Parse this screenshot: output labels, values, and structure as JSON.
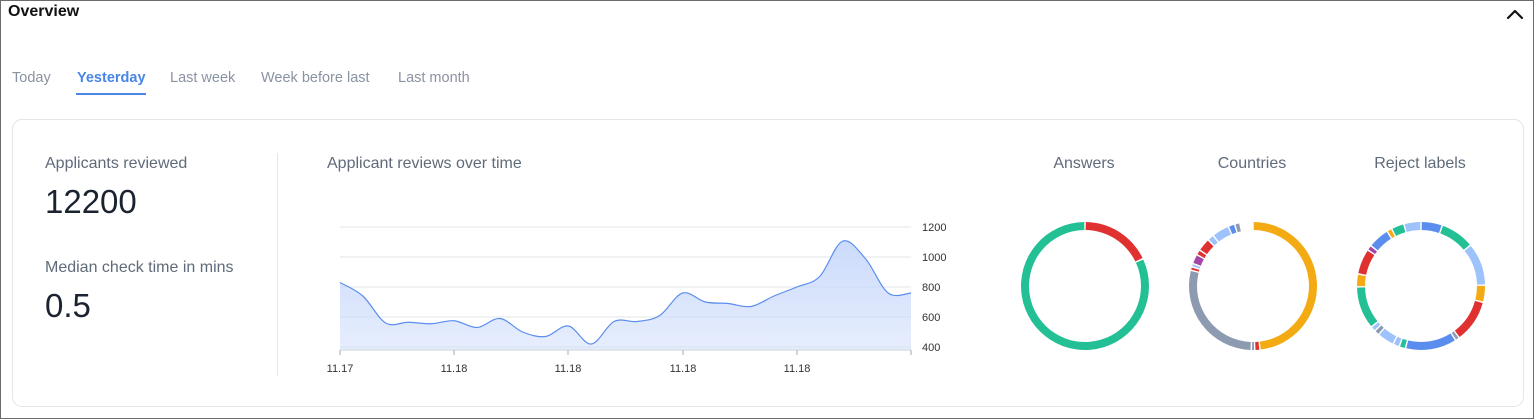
{
  "header": {
    "title": "Overview"
  },
  "tabs": [
    {
      "label": "Today",
      "active": false
    },
    {
      "label": "Yesterday",
      "active": true
    },
    {
      "label": "Last week",
      "active": false
    },
    {
      "label": "Week before last",
      "active": false
    },
    {
      "label": "Last month",
      "active": false
    }
  ],
  "stats": {
    "applicants_label": "Applicants reviewed",
    "applicants_value": "12200",
    "median_label": "Median check time in mins",
    "median_value": "0.5"
  },
  "line_chart": {
    "title": "Applicant reviews over time"
  },
  "donuts": {
    "answers": {
      "title": "Answers"
    },
    "countries": {
      "title": "Countries"
    },
    "reject": {
      "title": "Reject labels"
    }
  },
  "chart_data": [
    {
      "type": "area",
      "title": "Applicant reviews over time",
      "x_tick_labels": [
        "11.17",
        "11.18",
        "11.18",
        "11.18",
        "11.18"
      ],
      "y_ticks": [
        400,
        600,
        800,
        1000,
        1200
      ],
      "ylim": [
        380,
        1280
      ],
      "y_axis_side": "right",
      "grid": true,
      "color": "#5b8def",
      "fill": "#c9d9fb",
      "values": [
        830,
        740,
        560,
        565,
        555,
        575,
        530,
        590,
        500,
        470,
        540,
        420,
        570,
        570,
        610,
        760,
        700,
        690,
        670,
        740,
        800,
        870,
        1105,
        990,
        760,
        760
      ]
    },
    {
      "type": "pie",
      "title": "Answers",
      "slices": [
        {
          "value": 18,
          "color": "#e03131"
        },
        {
          "value": 82,
          "color": "#23bf95"
        }
      ]
    },
    {
      "type": "pie",
      "title": "Countries",
      "slices": [
        {
          "value": 44,
          "color": "#f4aa12"
        },
        {
          "value": 1.2,
          "color": "#e03131"
        },
        {
          "value": 0.8,
          "color": "#8c9bb0"
        },
        {
          "value": 26,
          "color": "#8c9bb0"
        },
        {
          "value": 0.8,
          "color": "#e03131"
        },
        {
          "value": 0.8,
          "color": "#9ec2fb"
        },
        {
          "value": 2.2,
          "color": "#a346a7"
        },
        {
          "value": 1.2,
          "color": "#e03131"
        },
        {
          "value": 3,
          "color": "#e03131"
        },
        {
          "value": 1.5,
          "color": "#9ec2fb"
        },
        {
          "value": 4,
          "color": "#9ec2fb"
        },
        {
          "value": 1.5,
          "color": "#5b8def"
        },
        {
          "value": 1.2,
          "color": "#8c9bb0"
        },
        {
          "value": 3,
          "color": "#ffffff"
        }
      ]
    },
    {
      "type": "pie",
      "title": "Reject labels",
      "slices": [
        {
          "value": 5,
          "color": "#5b8def"
        },
        {
          "value": 8,
          "color": "#23bf95"
        },
        {
          "value": 10,
          "color": "#9ec2fb"
        },
        {
          "value": 4,
          "color": "#f4aa12"
        },
        {
          "value": 10,
          "color": "#e03131"
        },
        {
          "value": 1,
          "color": "#8c9bb0"
        },
        {
          "value": 12,
          "color": "#5b8def"
        },
        {
          "value": 1.5,
          "color": "#23bf95"
        },
        {
          "value": 1.5,
          "color": "#9ec2fb"
        },
        {
          "value": 4,
          "color": "#9ec2fb"
        },
        {
          "value": 1.2,
          "color": "#8c9bb0"
        },
        {
          "value": 1.2,
          "color": "#9ec2fb"
        },
        {
          "value": 10,
          "color": "#23bf95"
        },
        {
          "value": 3,
          "color": "#f4aa12"
        },
        {
          "value": 6,
          "color": "#e03131"
        },
        {
          "value": 1.2,
          "color": "#a346a7"
        },
        {
          "value": 5,
          "color": "#5b8def"
        },
        {
          "value": 1.2,
          "color": "#f4aa12"
        },
        {
          "value": 3,
          "color": "#23bf95"
        },
        {
          "value": 4,
          "color": "#9ec2fb"
        }
      ]
    }
  ]
}
